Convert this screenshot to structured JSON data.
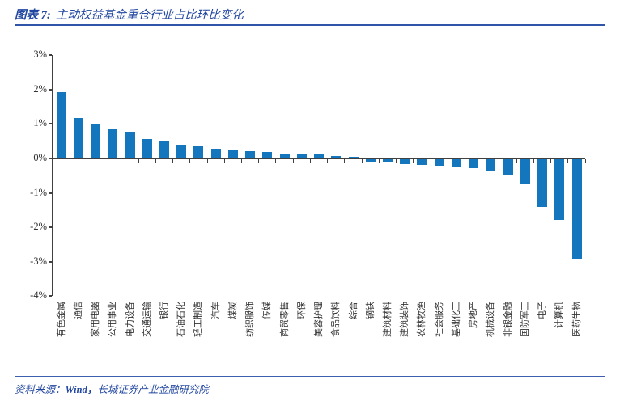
{
  "header": {
    "title_prefix": "图表 7:",
    "title_text": "主动权益基金重仓行业占比环比变化"
  },
  "footer": {
    "source_prefix": "资料来源：",
    "source_wind": "Wind，",
    "source_org": "长城证券产业金融研究院"
  },
  "colors": {
    "bar": "#1477BE",
    "accent_blue": "#2247A0",
    "rule_blue": "#2F55A8",
    "axis_gray": "#404040"
  },
  "chart_data": {
    "type": "bar",
    "title": "主动权益基金重仓行业占比环比变化",
    "xlabel": "",
    "ylabel": "",
    "ylim": [
      -4,
      3
    ],
    "grid": false,
    "legend": "none",
    "ytick_labels": [
      "3%",
      "2%",
      "1%",
      "0%",
      "-1%",
      "-2%",
      "-3%",
      "-4%"
    ],
    "categories": [
      "有色金属",
      "通信",
      "家用电器",
      "公用事业",
      "电力设备",
      "交通运输",
      "银行",
      "石油石化",
      "轻工制造",
      "汽车",
      "煤炭",
      "纺织服饰",
      "传媒",
      "商贸零售",
      "环保",
      "美容护理",
      "食品饮料",
      "综合",
      "钢铁",
      "建筑材料",
      "建筑装饰",
      "农林牧渔",
      "社会服务",
      "基础化工",
      "房地产",
      "机械设备",
      "非银金融",
      "国防军工",
      "电子",
      "计算机",
      "医药生物"
    ],
    "values": [
      1.9,
      1.15,
      0.98,
      0.83,
      0.74,
      0.53,
      0.5,
      0.38,
      0.32,
      0.26,
      0.21,
      0.18,
      0.16,
      0.12,
      0.1,
      0.09,
      0.05,
      0.02,
      -0.08,
      -0.1,
      -0.13,
      -0.16,
      -0.19,
      -0.22,
      -0.26,
      -0.35,
      -0.44,
      -0.72,
      -1.38,
      -1.75,
      -2.9
    ]
  }
}
